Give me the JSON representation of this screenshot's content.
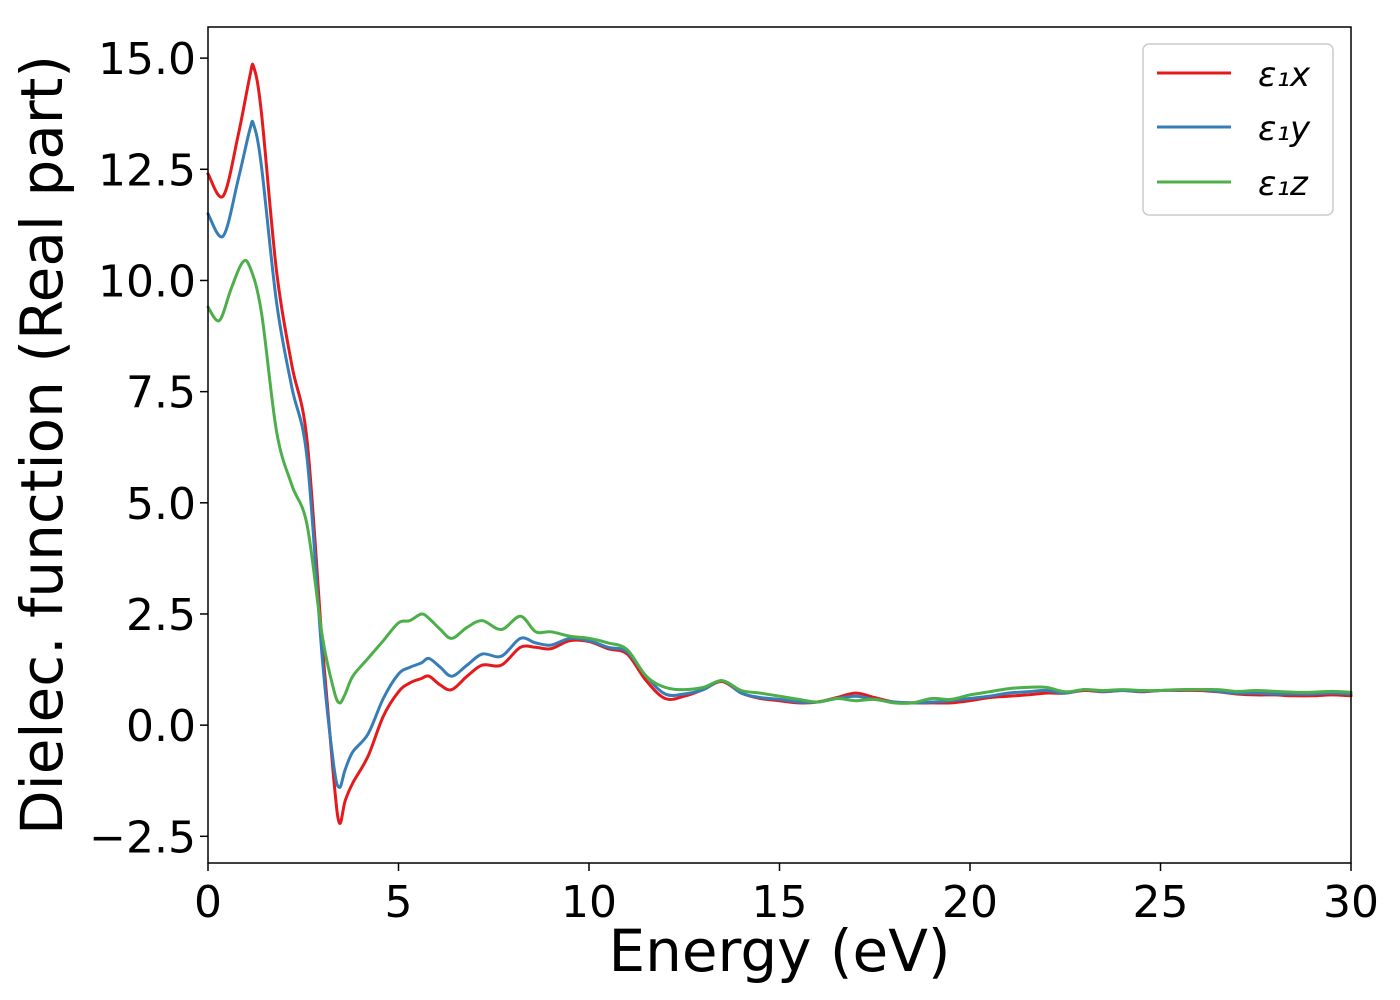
{
  "chart_data": {
    "type": "line",
    "xlabel": "Energy (eV)",
    "ylabel": "Dielec. function (Real part)",
    "xlim": [
      0,
      30
    ],
    "ylim": [
      -3.1,
      15.7
    ],
    "xticks": [
      0,
      5,
      10,
      15,
      20,
      25,
      30
    ],
    "xtick_labels": [
      "0",
      "5",
      "10",
      "15",
      "20",
      "25",
      "30"
    ],
    "yticks": [
      -2.5,
      0.0,
      2.5,
      5.0,
      7.5,
      10.0,
      12.5,
      15.0
    ],
    "ytick_labels": [
      "−2.5",
      "0.0",
      "2.5",
      "5.0",
      "7.5",
      "10.0",
      "12.5",
      "15.0"
    ],
    "grid": false,
    "legend_position": "top-right",
    "series": [
      {
        "name": "ε₁x",
        "color": "#e41a1c",
        "x": [
          0,
          0.4,
          0.8,
          1.1,
          1.2,
          1.4,
          1.8,
          2.2,
          2.6,
          3.0,
          3.3,
          3.45,
          3.6,
          3.8,
          4.2,
          4.6,
          5.0,
          5.3,
          5.6,
          5.8,
          6.1,
          6.4,
          6.8,
          7.2,
          7.7,
          8.2,
          8.6,
          9.0,
          9.5,
          10.0,
          10.5,
          11.0,
          11.5,
          12.0,
          12.5,
          13.0,
          13.5,
          14.0,
          14.5,
          15.0,
          15.5,
          16.0,
          16.5,
          17.0,
          17.5,
          18.0,
          18.5,
          19.0,
          19.5,
          20.0,
          20.5,
          21.0,
          21.5,
          22.0,
          22.5,
          23.0,
          23.5,
          24.0,
          24.5,
          25.0,
          25.5,
          26.0,
          26.5,
          27.0,
          27.5,
          28.0,
          28.5,
          29.0,
          29.5,
          30.0
        ],
        "y": [
          12.4,
          11.9,
          13.3,
          14.6,
          14.8,
          13.8,
          10.2,
          8.1,
          6.4,
          1.8,
          -1.2,
          -2.2,
          -1.7,
          -1.3,
          -0.7,
          0.2,
          0.75,
          0.95,
          1.05,
          1.1,
          0.9,
          0.8,
          1.1,
          1.35,
          1.35,
          1.75,
          1.75,
          1.72,
          1.9,
          1.88,
          1.72,
          1.6,
          1.0,
          0.6,
          0.65,
          0.8,
          0.98,
          0.72,
          0.6,
          0.55,
          0.5,
          0.52,
          0.62,
          0.72,
          0.62,
          0.52,
          0.5,
          0.5,
          0.5,
          0.55,
          0.62,
          0.65,
          0.68,
          0.72,
          0.72,
          0.78,
          0.75,
          0.78,
          0.75,
          0.78,
          0.78,
          0.78,
          0.75,
          0.7,
          0.68,
          0.68,
          0.66,
          0.66,
          0.68,
          0.66
        ]
      },
      {
        "name": "ε₁y",
        "color": "#377eb8",
        "x": [
          0,
          0.4,
          0.8,
          1.1,
          1.2,
          1.4,
          1.8,
          2.2,
          2.6,
          3.0,
          3.3,
          3.45,
          3.6,
          3.8,
          4.2,
          4.6,
          5.0,
          5.3,
          5.6,
          5.8,
          6.1,
          6.4,
          6.8,
          7.2,
          7.7,
          8.2,
          8.6,
          9.0,
          9.5,
          10.0,
          10.5,
          11.0,
          11.5,
          12.0,
          12.5,
          13.0,
          13.5,
          14.0,
          14.5,
          15.0,
          15.5,
          16.0,
          16.5,
          17.0,
          17.5,
          18.0,
          18.5,
          19.0,
          19.5,
          20.0,
          20.5,
          21.0,
          21.5,
          22.0,
          22.5,
          23.0,
          23.5,
          24.0,
          24.5,
          25.0,
          25.5,
          26.0,
          26.5,
          27.0,
          27.5,
          28.0,
          28.5,
          29.0,
          29.5,
          30.0
        ],
        "y": [
          11.5,
          11.0,
          12.3,
          13.4,
          13.5,
          12.6,
          9.5,
          7.6,
          6.0,
          1.5,
          -0.9,
          -1.4,
          -1.0,
          -0.6,
          -0.2,
          0.6,
          1.15,
          1.3,
          1.4,
          1.5,
          1.3,
          1.1,
          1.35,
          1.6,
          1.55,
          1.95,
          1.85,
          1.8,
          1.95,
          1.9,
          1.75,
          1.65,
          1.1,
          0.7,
          0.7,
          0.8,
          1.0,
          0.72,
          0.62,
          0.58,
          0.52,
          0.52,
          0.6,
          0.65,
          0.58,
          0.52,
          0.5,
          0.52,
          0.55,
          0.6,
          0.65,
          0.72,
          0.75,
          0.78,
          0.72,
          0.8,
          0.76,
          0.78,
          0.76,
          0.78,
          0.79,
          0.8,
          0.76,
          0.72,
          0.72,
          0.7,
          0.7,
          0.7,
          0.72,
          0.7
        ]
      },
      {
        "name": "ε₁z",
        "color": "#4daf4a",
        "x": [
          0,
          0.3,
          0.6,
          0.9,
          1.1,
          1.4,
          1.8,
          2.2,
          2.6,
          3.0,
          3.3,
          3.45,
          3.6,
          3.8,
          4.2,
          4.6,
          5.0,
          5.3,
          5.6,
          5.8,
          6.1,
          6.4,
          6.8,
          7.2,
          7.7,
          8.2,
          8.6,
          9.0,
          9.5,
          10.0,
          10.5,
          11.0,
          11.5,
          12.0,
          12.5,
          13.0,
          13.5,
          14.0,
          14.5,
          15.0,
          15.5,
          16.0,
          16.5,
          17.0,
          17.5,
          18.0,
          18.5,
          19.0,
          19.5,
          20.0,
          20.5,
          21.0,
          21.5,
          22.0,
          22.5,
          23.0,
          23.5,
          24.0,
          24.5,
          25.0,
          25.5,
          26.0,
          26.5,
          27.0,
          27.5,
          28.0,
          28.5,
          29.0,
          29.5,
          30.0
        ],
        "y": [
          9.4,
          9.1,
          9.8,
          10.4,
          10.3,
          9.3,
          6.6,
          5.4,
          4.5,
          2.0,
          0.8,
          0.5,
          0.7,
          1.1,
          1.5,
          1.9,
          2.3,
          2.35,
          2.5,
          2.4,
          2.15,
          1.95,
          2.2,
          2.35,
          2.15,
          2.45,
          2.1,
          2.1,
          2.0,
          1.95,
          1.85,
          1.7,
          1.1,
          0.85,
          0.8,
          0.85,
          1.0,
          0.78,
          0.72,
          0.65,
          0.58,
          0.52,
          0.6,
          0.55,
          0.58,
          0.5,
          0.5,
          0.6,
          0.58,
          0.68,
          0.75,
          0.82,
          0.85,
          0.85,
          0.75,
          0.8,
          0.78,
          0.8,
          0.78,
          0.78,
          0.8,
          0.8,
          0.8,
          0.76,
          0.78,
          0.76,
          0.74,
          0.74,
          0.76,
          0.74
        ]
      }
    ]
  }
}
